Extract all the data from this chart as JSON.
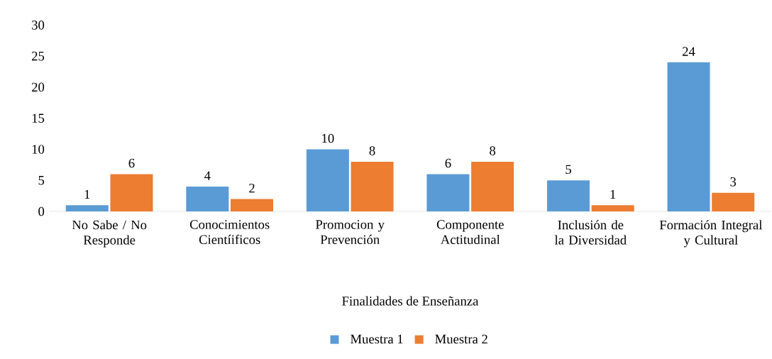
{
  "chart_data": {
    "type": "bar",
    "xlabel": "Finalidades de Enseñanza",
    "categories": [
      "No Sabe / No Responde",
      "Conocimientos Cientíificos",
      "Promocion y Prevención",
      "Componente Actitudinal",
      "Inclusión de la Diversidad",
      "Formación Integral y Cultural"
    ],
    "series": [
      {
        "name": "Muestra 1",
        "color": "#5b9bd5",
        "values": [
          1,
          4,
          10,
          6,
          5,
          24
        ]
      },
      {
        "name": "Muestra 2",
        "color": "#ed7d31",
        "values": [
          6,
          2,
          8,
          8,
          1,
          3
        ]
      }
    ],
    "ylim": [
      0,
      30
    ],
    "yticks": [
      0,
      5,
      10,
      15,
      20,
      25,
      30
    ],
    "data_labels": true,
    "legend": "bottom"
  }
}
